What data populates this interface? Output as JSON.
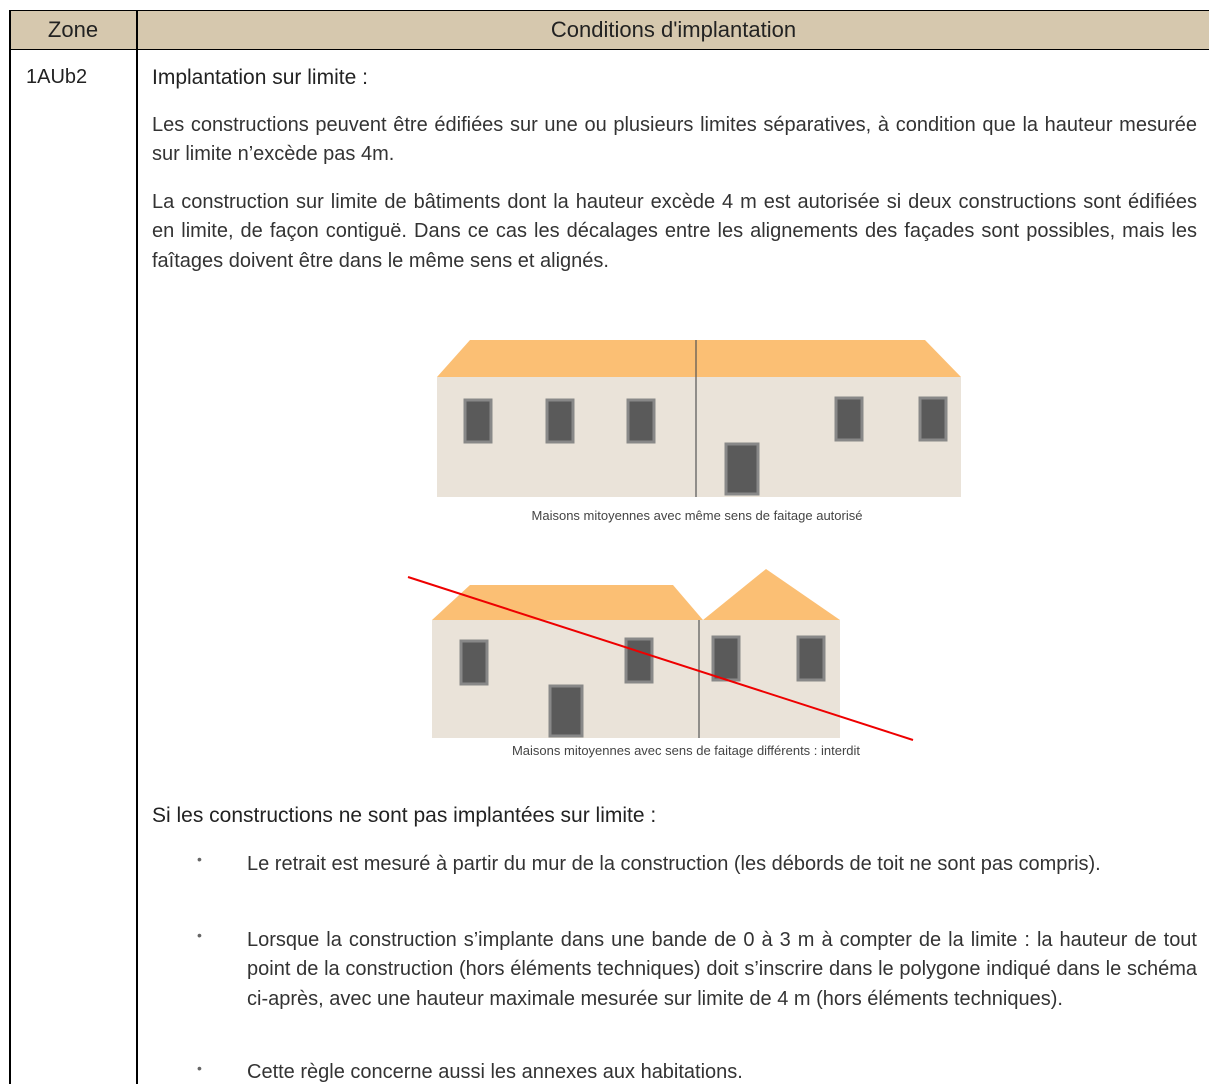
{
  "header": {
    "zone": "Zone",
    "conditions": "Conditions d'implantation"
  },
  "row": {
    "zone": "1AUb2",
    "heading": "Implantation sur limite :",
    "paragraphs": [
      "Les constructions peuvent être édifiées sur une ou plusieurs limites séparatives, à condition que la hauteur mesurée sur limite n’excède pas 4m.",
      "La construction sur limite de bâtiments dont la hauteur excède 4 m est autorisée si deux constructions sont édifiées en limite, de façon contiguë. Dans ce cas les décalages entre les alignements des façades sont possibles, mais les faîtages doivent être dans le même sens et alignés."
    ],
    "figures": [
      {
        "caption": "Maisons mitoyennes avec même sens de faitage autorisé"
      },
      {
        "caption": "Maisons mitoyennes avec sens de faitage différents : interdit"
      }
    ],
    "heading2": "Si les constructions ne sont pas implantées sur limite :",
    "bullets": [
      "Le retrait est mesuré à partir du mur de la construction (les débords de toit ne sont pas compris).",
      "Lorsque la construction s’implante dans une bande de 0 à 3 m à compter de la limite : la hauteur de tout point de la construction (hors éléments techniques) doit s’inscrire dans le polygone indiqué dans le schéma ci-après, avec une hauteur maximale mesurée sur limite de 4 m (hors éléments techniques).",
      "Cette règle concerne aussi les annexes aux habitations."
    ]
  }
}
